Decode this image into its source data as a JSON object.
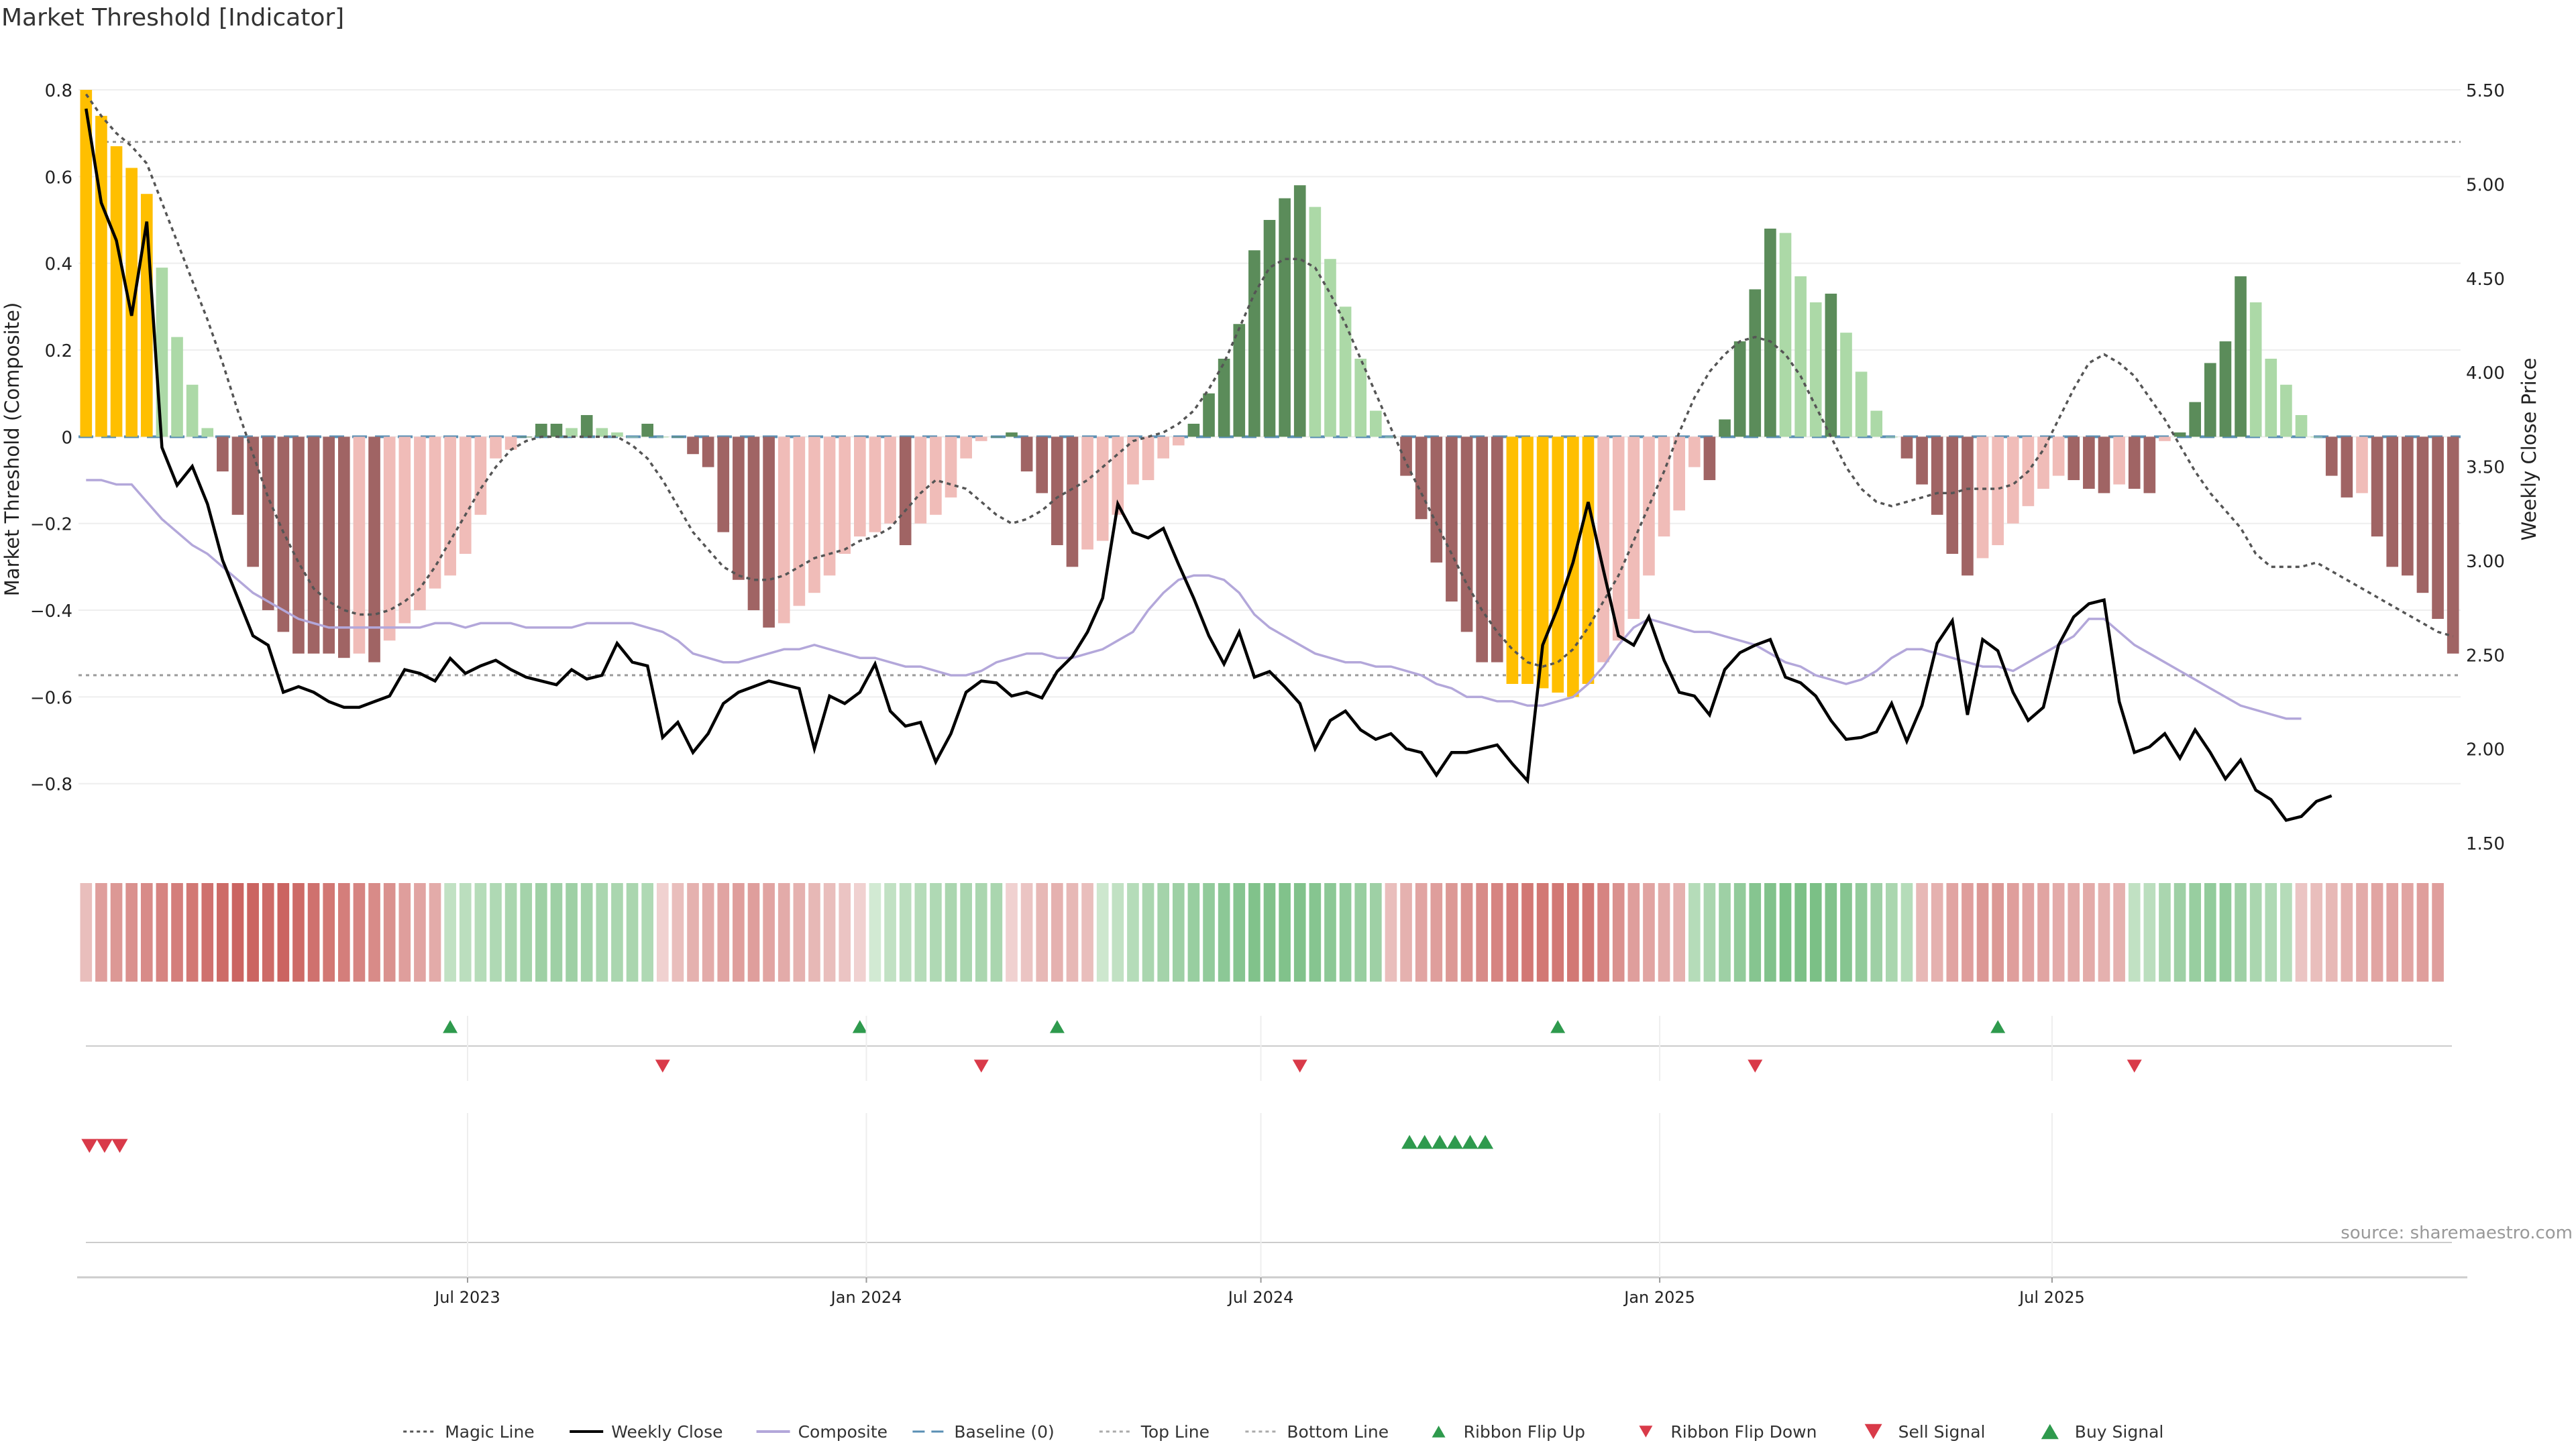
{
  "title": "Market Threshold [Indicator]",
  "source_note": "source: sharemaestro.com",
  "colors": {
    "strong_pos": "#5b8c5a",
    "weak_pos": "#acd9a7",
    "strong_neg": "#a06464",
    "weak_neg": "#f0bcb8",
    "extreme": "#ffbf00",
    "price": "#000000",
    "composite": "#b3a7da",
    "magic": "#555555",
    "baseline": "#5a8fb4",
    "buy": "#2e9a4d",
    "sell": "#d93a49"
  },
  "chart_data": {
    "type": "bar",
    "title": "Market Threshold [Indicator]",
    "ylabel": "Market Threshold (Composite)",
    "y2label": "Weekly Close Price",
    "ylim": [
      -0.87,
      0.8
    ],
    "y2lim": [
      1.5,
      5.5
    ],
    "yticks": [
      "0.8",
      "0.6",
      "0.4",
      "0.2",
      "0",
      "−0.2",
      "−0.4",
      "−0.6",
      "−0.8"
    ],
    "y2ticks": [
      "5.50",
      "5.00",
      "4.50",
      "4.00",
      "3.50",
      "3.00",
      "2.50",
      "2.00",
      "1.50"
    ],
    "x_start": "2023-01-06",
    "x_step_days": 7,
    "xticks": [
      {
        "label": "Jul 2023",
        "date": "2023-07-01"
      },
      {
        "label": "Jan 2024",
        "date": "2024-01-01"
      },
      {
        "label": "Jul 2024",
        "date": "2024-07-01"
      },
      {
        "label": "Jan 2025",
        "date": "2025-01-01"
      },
      {
        "label": "Jul 2025",
        "date": "2025-07-01"
      }
    ],
    "top_line": 0.68,
    "bottom_line": -0.55,
    "baseline": 0,
    "series": [
      {
        "name": "Market Threshold (Composite)",
        "type": "bar",
        "values": [
          0.8,
          0.74,
          0.67,
          0.62,
          0.56,
          0.39,
          0.23,
          0.12,
          0.02,
          -0.08,
          -0.18,
          -0.3,
          -0.4,
          -0.45,
          -0.5,
          -0.5,
          -0.5,
          -0.51,
          -0.5,
          -0.52,
          -0.47,
          -0.43,
          -0.4,
          -0.35,
          -0.32,
          -0.27,
          -0.18,
          -0.05,
          -0.03,
          0,
          0.03,
          0.03,
          0.02,
          0.05,
          0.02,
          0.01,
          0,
          0.03,
          0,
          0,
          -0.04,
          -0.07,
          -0.22,
          -0.33,
          -0.4,
          -0.44,
          -0.43,
          -0.39,
          -0.36,
          -0.32,
          -0.27,
          -0.23,
          -0.22,
          -0.2,
          -0.25,
          -0.2,
          -0.18,
          -0.14,
          -0.05,
          -0.01,
          0,
          0.01,
          -0.08,
          -0.13,
          -0.25,
          -0.3,
          -0.26,
          -0.24,
          -0.18,
          -0.11,
          -0.1,
          -0.05,
          -0.02,
          0.03,
          0.1,
          0.18,
          0.26,
          0.43,
          0.5,
          0.55,
          0.58,
          0.53,
          0.41,
          0.3,
          0.18,
          0.06,
          0,
          -0.09,
          -0.19,
          -0.29,
          -0.38,
          -0.45,
          -0.52,
          -0.52,
          -0.57,
          -0.57,
          -0.58,
          -0.59,
          -0.6,
          -0.57,
          -0.52,
          -0.47,
          -0.42,
          -0.32,
          -0.23,
          -0.17,
          -0.07,
          -0.1,
          0.04,
          0.22,
          0.34,
          0.48,
          0.47,
          0.37,
          0.31,
          0.33,
          0.24,
          0.15,
          0.06,
          0,
          -0.05,
          -0.11,
          -0.18,
          -0.27,
          -0.32,
          -0.28,
          -0.25,
          -0.2,
          -0.16,
          -0.12,
          -0.09,
          -0.1,
          -0.12,
          -0.13,
          -0.11,
          -0.12,
          -0.13,
          -0.01,
          0.01,
          0.08,
          0.17,
          0.22,
          0.37,
          0.31,
          0.18,
          0.12,
          0.05,
          0,
          -0.09,
          -0.14,
          -0.13,
          -0.23,
          -0.3,
          -0.32,
          -0.36,
          -0.42,
          -0.5
        ]
      },
      {
        "name": "Magic Line",
        "values": [
          0.79,
          0.74,
          0.7,
          0.67,
          0.63,
          0.54,
          0.45,
          0.36,
          0.27,
          0.17,
          0.06,
          -0.04,
          -0.14,
          -0.22,
          -0.29,
          -0.35,
          -0.38,
          -0.4,
          -0.41,
          -0.41,
          -0.4,
          -0.38,
          -0.35,
          -0.3,
          -0.24,
          -0.18,
          -0.12,
          -0.07,
          -0.03,
          -0.01,
          0,
          0,
          0,
          0,
          0,
          0,
          -0.02,
          -0.05,
          -0.1,
          -0.16,
          -0.22,
          -0.26,
          -0.3,
          -0.32,
          -0.33,
          -0.33,
          -0.32,
          -0.3,
          -0.28,
          -0.27,
          -0.26,
          -0.24,
          -0.23,
          -0.21,
          -0.17,
          -0.13,
          -0.1,
          -0.11,
          -0.12,
          -0.15,
          -0.18,
          -0.2,
          -0.19,
          -0.17,
          -0.14,
          -0.12,
          -0.1,
          -0.07,
          -0.04,
          -0.01,
          0,
          0.01,
          0.03,
          0.06,
          0.11,
          0.17,
          0.25,
          0.33,
          0.39,
          0.41,
          0.41,
          0.39,
          0.33,
          0.26,
          0.18,
          0.1,
          0.02,
          -0.06,
          -0.13,
          -0.2,
          -0.27,
          -0.34,
          -0.4,
          -0.45,
          -0.49,
          -0.52,
          -0.53,
          -0.52,
          -0.49,
          -0.44,
          -0.38,
          -0.32,
          -0.24,
          -0.16,
          -0.08,
          0.01,
          0.09,
          0.15,
          0.19,
          0.22,
          0.23,
          0.22,
          0.19,
          0.14,
          0.07,
          0,
          -0.07,
          -0.12,
          -0.15,
          -0.16,
          -0.15,
          -0.14,
          -0.13,
          -0.13,
          -0.12,
          -0.12,
          -0.12,
          -0.11,
          -0.08,
          -0.03,
          0.04,
          0.11,
          0.17,
          0.19,
          0.17,
          0.14,
          0.09,
          0.04,
          -0.02,
          -0.08,
          -0.13,
          -0.17,
          -0.21,
          -0.27,
          -0.3,
          -0.3,
          -0.3,
          -0.29,
          -0.31,
          -0.33,
          -0.35,
          -0.37,
          -0.39,
          -0.41,
          -0.43,
          -0.45,
          -0.46
        ]
      },
      {
        "name": "Weekly Close",
        "axis": "right",
        "values": [
          5.4,
          4.9,
          4.7,
          4.3,
          4.8,
          3.6,
          3.4,
          3.5,
          3.3,
          3.0,
          2.8,
          2.6,
          2.55,
          2.3,
          2.33,
          2.3,
          2.25,
          2.22,
          2.22,
          2.25,
          2.28,
          2.42,
          2.4,
          2.36,
          2.48,
          2.4,
          2.44,
          2.47,
          2.42,
          2.38,
          2.36,
          2.34,
          2.42,
          2.37,
          2.39,
          2.56,
          2.46,
          2.44,
          2.06,
          2.14,
          1.98,
          2.08,
          2.24,
          2.3,
          2.33,
          2.36,
          2.34,
          2.32,
          2.0,
          2.28,
          2.24,
          2.3,
          2.45,
          2.2,
          2.12,
          2.14,
          1.93,
          2.08,
          2.3,
          2.36,
          2.35,
          2.28,
          2.3,
          2.27,
          2.41,
          2.49,
          2.62,
          2.8,
          3.3,
          3.15,
          3.12,
          3.17,
          2.98,
          2.8,
          2.6,
          2.45,
          2.62,
          2.38,
          2.41,
          2.33,
          2.24,
          2.0,
          2.15,
          2.2,
          2.1,
          2.05,
          2.08,
          2.0,
          1.98,
          1.86,
          1.98,
          1.98,
          2.0,
          2.02,
          1.92,
          1.83,
          2.55,
          2.75,
          2.99,
          3.31,
          2.95,
          2.6,
          2.55,
          2.7,
          2.47,
          2.3,
          2.28,
          2.18,
          2.42,
          2.51,
          2.55,
          2.58,
          2.38,
          2.35,
          2.28,
          2.15,
          2.05,
          2.06,
          2.09,
          2.24,
          2.04,
          2.23,
          2.56,
          2.68,
          2.18,
          2.58,
          2.52,
          2.3,
          2.15,
          2.22,
          2.55,
          2.7,
          2.77,
          2.79,
          2.25,
          1.98,
          2.01,
          2.08,
          1.95,
          2.1,
          1.98,
          1.84,
          1.94,
          1.78,
          1.73,
          1.62,
          1.64,
          1.72,
          1.75
        ]
      },
      {
        "name": "Composite",
        "values": [
          -0.1,
          -0.1,
          -0.11,
          -0.11,
          -0.15,
          -0.19,
          -0.22,
          -0.25,
          -0.27,
          -0.3,
          -0.33,
          -0.36,
          -0.38,
          -0.4,
          -0.42,
          -0.43,
          -0.44,
          -0.44,
          -0.44,
          -0.44,
          -0.44,
          -0.44,
          -0.44,
          -0.43,
          -0.43,
          -0.44,
          -0.43,
          -0.43,
          -0.43,
          -0.44,
          -0.44,
          -0.44,
          -0.44,
          -0.43,
          -0.43,
          -0.43,
          -0.43,
          -0.44,
          -0.45,
          -0.47,
          -0.5,
          -0.51,
          -0.52,
          -0.52,
          -0.51,
          -0.5,
          -0.49,
          -0.49,
          -0.48,
          -0.49,
          -0.5,
          -0.51,
          -0.51,
          -0.52,
          -0.53,
          -0.53,
          -0.54,
          -0.55,
          -0.55,
          -0.54,
          -0.52,
          -0.51,
          -0.5,
          -0.5,
          -0.51,
          -0.51,
          -0.5,
          -0.49,
          -0.47,
          -0.45,
          -0.4,
          -0.36,
          -0.33,
          -0.32,
          -0.32,
          -0.33,
          -0.36,
          -0.41,
          -0.44,
          -0.46,
          -0.48,
          -0.5,
          -0.51,
          -0.52,
          -0.52,
          -0.53,
          -0.53,
          -0.54,
          -0.55,
          -0.57,
          -0.58,
          -0.6,
          -0.6,
          -0.61,
          -0.61,
          -0.62,
          -0.62,
          -0.61,
          -0.6,
          -0.57,
          -0.53,
          -0.48,
          -0.44,
          -0.42,
          -0.43,
          -0.44,
          -0.45,
          -0.45,
          -0.46,
          -0.47,
          -0.48,
          -0.5,
          -0.52,
          -0.53,
          -0.55,
          -0.56,
          -0.57,
          -0.56,
          -0.54,
          -0.51,
          -0.49,
          -0.49,
          -0.5,
          -0.51,
          -0.52,
          -0.53,
          -0.53,
          -0.54,
          -0.52,
          -0.5,
          -0.48,
          -0.46,
          -0.42,
          -0.42,
          -0.45,
          -0.48,
          -0.5,
          -0.52,
          -0.54,
          -0.56,
          -0.58,
          -0.6,
          -0.62,
          -0.63,
          -0.64,
          -0.65,
          -0.65
        ]
      }
    ],
    "ribbon": [
      -0.25,
      -0.5,
      -0.55,
      -0.6,
      -0.65,
      -0.7,
      -0.75,
      -0.8,
      -0.85,
      -0.9,
      -0.95,
      -0.95,
      -0.9,
      -0.95,
      -0.9,
      -0.85,
      -0.8,
      -0.75,
      -0.7,
      -0.65,
      -0.6,
      -0.5,
      -0.45,
      -0.4,
      0.3,
      0.35,
      0.4,
      0.45,
      0.5,
      0.55,
      0.6,
      0.6,
      0.6,
      0.55,
      0.5,
      0.5,
      0.5,
      0.45,
      -0.1,
      -0.25,
      -0.35,
      -0.4,
      -0.45,
      -0.5,
      -0.5,
      -0.45,
      -0.4,
      -0.35,
      -0.3,
      -0.25,
      -0.2,
      -0.1,
      0.15,
      0.3,
      0.35,
      0.4,
      0.45,
      0.5,
      0.5,
      0.5,
      0.5,
      -0.1,
      -0.2,
      -0.3,
      -0.35,
      -0.3,
      -0.25,
      0.2,
      0.3,
      0.4,
      0.5,
      0.55,
      0.6,
      0.65,
      0.7,
      0.75,
      0.8,
      0.85,
      0.85,
      0.85,
      0.85,
      0.8,
      0.75,
      0.7,
      0.65,
      0.6,
      -0.25,
      -0.35,
      -0.45,
      -0.5,
      -0.55,
      -0.6,
      -0.65,
      -0.7,
      -0.75,
      -0.8,
      -0.8,
      -0.8,
      -0.8,
      -0.8,
      -0.7,
      -0.6,
      -0.5,
      -0.45,
      -0.4,
      -0.35,
      0.4,
      0.5,
      0.6,
      0.7,
      0.8,
      0.85,
      0.9,
      0.9,
      0.9,
      0.85,
      0.8,
      0.7,
      0.6,
      0.5,
      0.4,
      -0.3,
      -0.35,
      -0.45,
      -0.5,
      -0.55,
      -0.55,
      -0.5,
      -0.45,
      -0.45,
      -0.4,
      -0.4,
      -0.4,
      -0.35,
      -0.35,
      0.3,
      0.35,
      0.5,
      0.6,
      0.65,
      0.7,
      0.7,
      0.6,
      0.5,
      0.45,
      0.4,
      -0.2,
      -0.25,
      -0.3,
      -0.35,
      -0.4,
      -0.45,
      -0.45,
      -0.45,
      -0.5,
      -0.5
    ],
    "ribbon_flip_up": [
      24,
      51,
      64,
      97,
      126
    ],
    "ribbon_flip_down": [
      38,
      59,
      80,
      110,
      135
    ],
    "sell_signals": [
      0,
      1,
      2
    ],
    "buy_signals": [
      87,
      88,
      89,
      90,
      91,
      92
    ]
  },
  "legend": [
    {
      "label": "Magic Line",
      "kind": "dotted",
      "color": "#555555"
    },
    {
      "label": "Weekly Close",
      "kind": "solid",
      "color": "#000000"
    },
    {
      "label": "Composite",
      "kind": "solid",
      "color": "#b3a7da"
    },
    {
      "label": "Baseline (0)",
      "kind": "dashed",
      "color": "#5a8fb4"
    },
    {
      "label": "Top Line",
      "kind": "dotted",
      "color": "#aaaaaa"
    },
    {
      "label": "Bottom Line",
      "kind": "dotted",
      "color": "#aaaaaa"
    },
    {
      "label": "Ribbon Flip Up",
      "kind": "tri-up-small",
      "color": "#2e9a4d"
    },
    {
      "label": "Ribbon Flip Down",
      "kind": "tri-down-small",
      "color": "#d93a49"
    },
    {
      "label": "Sell Signal",
      "kind": "tri-down",
      "color": "#d93a49"
    },
    {
      "label": "Buy Signal",
      "kind": "tri-up",
      "color": "#2e9a4d"
    }
  ]
}
